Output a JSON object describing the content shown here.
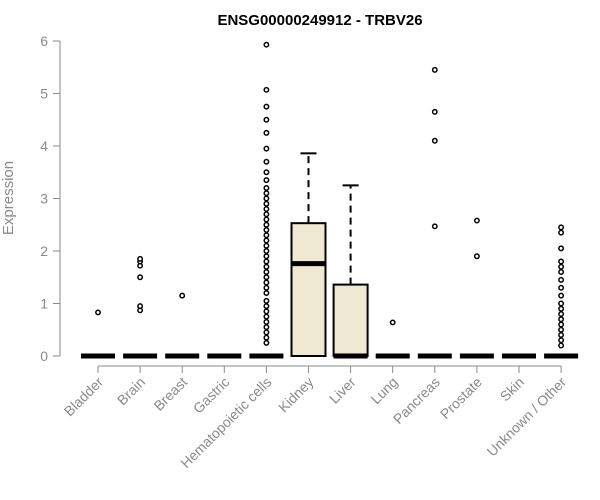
{
  "chart_data": {
    "type": "boxplot",
    "title": "ENSG00000249912 - TRBV26",
    "xlabel": "",
    "ylabel": "Expression",
    "ylim": [
      0,
      6
    ],
    "yticks": [
      "0",
      "1",
      "2",
      "3",
      "4",
      "5",
      "6"
    ],
    "colors": {
      "box_fill": "#efe9d3",
      "axis": "#8a8a8a",
      "ink": "#000000"
    },
    "categories": [
      {
        "name": "Bladder",
        "q1": 0,
        "median": 0,
        "q3": 0,
        "whisker_low": 0,
        "whisker_high": 0,
        "outliers": [
          0.83
        ]
      },
      {
        "name": "Brain",
        "q1": 0,
        "median": 0,
        "q3": 0,
        "whisker_low": 0,
        "whisker_high": 0,
        "outliers": [
          0.87,
          0.95,
          1.5,
          1.72,
          1.8,
          1.85
        ]
      },
      {
        "name": "Breast",
        "q1": 0,
        "median": 0,
        "q3": 0,
        "whisker_low": 0,
        "whisker_high": 0,
        "outliers": [
          1.15
        ]
      },
      {
        "name": "Gastric",
        "q1": 0,
        "median": 0,
        "q3": 0,
        "whisker_low": 0,
        "whisker_high": 0,
        "outliers": []
      },
      {
        "name": "Hematopoietic cells",
        "q1": 0,
        "median": 0,
        "q3": 0,
        "whisker_low": 0,
        "whisker_high": 0,
        "outliers": [
          0.25,
          0.35,
          0.45,
          0.55,
          0.65,
          0.75,
          0.85,
          0.95,
          1.05,
          1.2,
          1.3,
          1.4,
          1.5,
          1.6,
          1.7,
          1.8,
          1.9,
          2.0,
          2.1,
          2.2,
          2.3,
          2.4,
          2.5,
          2.6,
          2.7,
          2.8,
          2.9,
          3.0,
          3.1,
          3.2,
          3.35,
          3.5,
          3.7,
          3.95,
          4.25,
          4.5,
          4.75,
          5.07,
          5.93
        ]
      },
      {
        "name": "Kidney",
        "q1": 0,
        "median": 1.76,
        "q3": 2.53,
        "whisker_low": 0,
        "whisker_high": 3.86,
        "outliers": []
      },
      {
        "name": "Liver",
        "q1": 0,
        "median": 0,
        "q3": 1.36,
        "whisker_low": 0,
        "whisker_high": 3.25,
        "outliers": []
      },
      {
        "name": "Lung",
        "q1": 0,
        "median": 0,
        "q3": 0,
        "whisker_low": 0,
        "whisker_high": 0,
        "outliers": [
          0.64
        ]
      },
      {
        "name": "Pancreas",
        "q1": 0,
        "median": 0,
        "q3": 0,
        "whisker_low": 0,
        "whisker_high": 0,
        "outliers": [
          2.47,
          4.1,
          4.65,
          5.45
        ]
      },
      {
        "name": "Prostate",
        "q1": 0,
        "median": 0,
        "q3": 0,
        "whisker_low": 0,
        "whisker_high": 0,
        "outliers": [
          1.9,
          2.58
        ]
      },
      {
        "name": "Skin",
        "q1": 0,
        "median": 0,
        "q3": 0,
        "whisker_low": 0,
        "whisker_high": 0,
        "outliers": []
      },
      {
        "name": "Unknown / Other",
        "q1": 0,
        "median": 0,
        "q3": 0,
        "whisker_low": 0,
        "whisker_high": 0,
        "outliers": [
          0.2,
          0.3,
          0.4,
          0.5,
          0.6,
          0.7,
          0.8,
          0.9,
          1.0,
          1.15,
          1.3,
          1.45,
          1.6,
          1.7,
          1.8,
          2.05,
          2.35,
          2.45
        ]
      }
    ]
  }
}
